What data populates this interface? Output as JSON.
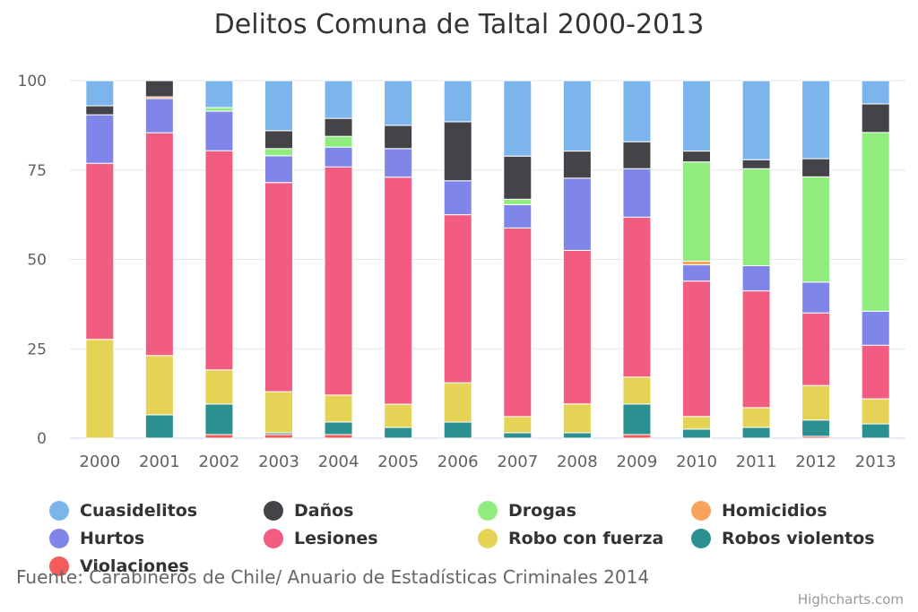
{
  "chart_data": {
    "type": "bar",
    "stacking": "percent",
    "title": "Delitos Comuna de Taltal 2000-2013",
    "categories": [
      "2000",
      "2001",
      "2002",
      "2003",
      "2004",
      "2005",
      "2006",
      "2007",
      "2008",
      "2009",
      "2010",
      "2011",
      "2012",
      "2013"
    ],
    "ylim": [
      0,
      100
    ],
    "yticks": [
      0,
      25,
      50,
      75,
      100
    ],
    "grid": true,
    "legend_position": "bottom",
    "series": [
      {
        "name": "Cuasidelitos",
        "color": "#7cb5ec",
        "values": [
          7,
          0,
          7.5,
          14,
          10.5,
          12.5,
          11.5,
          21,
          19.5,
          17,
          19.5,
          22,
          21.5,
          6.5
        ]
      },
      {
        "name": "Daños",
        "color": "#434348",
        "values": [
          2.5,
          4.5,
          0,
          5,
          5,
          6.5,
          16.5,
          12,
          7.5,
          7.5,
          3,
          2.5,
          5,
          8
        ]
      },
      {
        "name": "Drogas",
        "color": "#90ed7d",
        "values": [
          0,
          0,
          1,
          2,
          3,
          0,
          0,
          1.5,
          0,
          0,
          27.5,
          27,
          29,
          50
        ]
      },
      {
        "name": "Homicidios",
        "color": "#f7a35c",
        "values": [
          0,
          0.5,
          0,
          0,
          0,
          0,
          0,
          0,
          0,
          0,
          1,
          0,
          0,
          0
        ]
      },
      {
        "name": "Hurtos",
        "color": "#8085e9",
        "values": [
          13.5,
          9.5,
          11,
          7.5,
          5.5,
          8,
          9.5,
          6.5,
          20,
          13.5,
          4.5,
          7,
          8.5,
          9.5
        ]
      },
      {
        "name": "Lesiones",
        "color": "#f15c80",
        "values": [
          49,
          62,
          61,
          58.5,
          63.5,
          63.5,
          47,
          52.5,
          42.5,
          44.5,
          37.5,
          32.5,
          20,
          15
        ]
      },
      {
        "name": "Robo con fuerza",
        "color": "#e4d354",
        "values": [
          27.5,
          16.5,
          9.5,
          11.5,
          7.5,
          6.5,
          11,
          4.5,
          8,
          7.5,
          3.5,
          5.5,
          9.5,
          7
        ]
      },
      {
        "name": "Robos violentos",
        "color": "#2b908f",
        "values": [
          0,
          6.5,
          8.5,
          0.5,
          3.5,
          3,
          4.5,
          1.5,
          1.5,
          8.5,
          2.5,
          3,
          4.5,
          4
        ]
      },
      {
        "name": "Violaciones",
        "color": "#f45b5b",
        "values": [
          0,
          0,
          1,
          1,
          1,
          0,
          0,
          0,
          0,
          1,
          0,
          0,
          0.5,
          0
        ]
      }
    ]
  },
  "caption": "Fuente: Carabineros de Chile/ Anuario de Estadísticas Criminales 2014",
  "credits": "Highcharts.com"
}
